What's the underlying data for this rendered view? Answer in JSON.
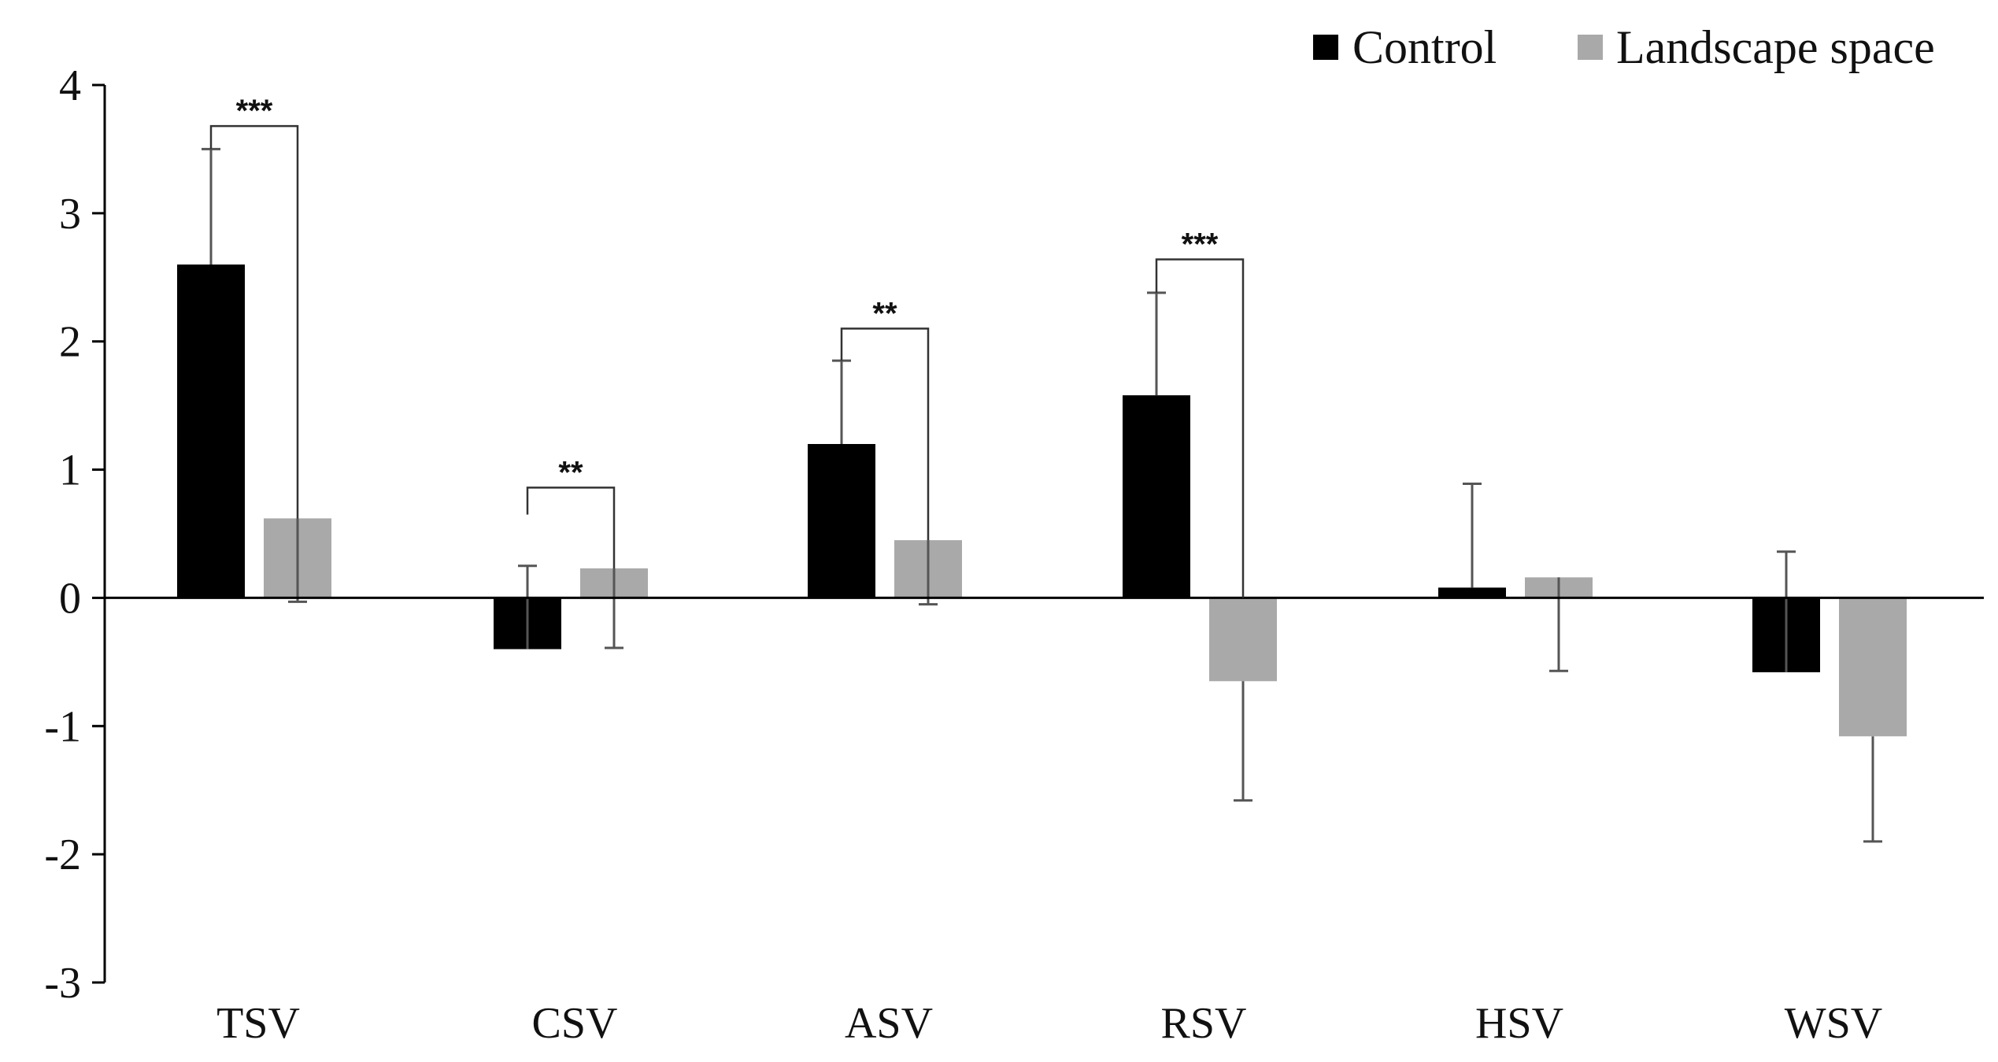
{
  "chart_data": {
    "type": "bar",
    "title": "",
    "xlabel": "",
    "ylabel": "",
    "ylim": [
      -3,
      4
    ],
    "yticks": [
      4,
      3,
      2,
      1,
      0,
      -1,
      -2,
      -3
    ],
    "categories": [
      "TSV",
      "CSV",
      "ASV",
      "RSV",
      "HSV",
      "WSV"
    ],
    "series": [
      {
        "name": "Control",
        "color": "#000000",
        "values": [
          2.6,
          -0.4,
          1.2,
          1.58,
          0.08,
          -0.58
        ],
        "error_upper": [
          0.9,
          0.65,
          0.65,
          0.8,
          0.81,
          0.94
        ],
        "error_lower": [
          0.0,
          0.0,
          0.0,
          0.0,
          0.0,
          0.0
        ]
      },
      {
        "name": "Landscape space",
        "color": "#a9a9a9",
        "values": [
          0.62,
          0.23,
          0.45,
          -0.65,
          0.16,
          -1.08
        ],
        "error_upper": [
          0.0,
          0.0,
          0.0,
          0.0,
          0.0,
          0.0
        ],
        "error_lower": [
          0.65,
          0.62,
          0.5,
          0.93,
          0.73,
          0.82
        ]
      }
    ],
    "significance": [
      {
        "category": "TSV",
        "label": "***",
        "top": 3.68
      },
      {
        "category": "CSV",
        "label": "**",
        "top": 0.86
      },
      {
        "category": "ASV",
        "label": "**",
        "top": 2.1
      },
      {
        "category": "RSV",
        "label": "***",
        "top": 2.64
      }
    ],
    "legend_position": "top-right",
    "grid": false
  }
}
